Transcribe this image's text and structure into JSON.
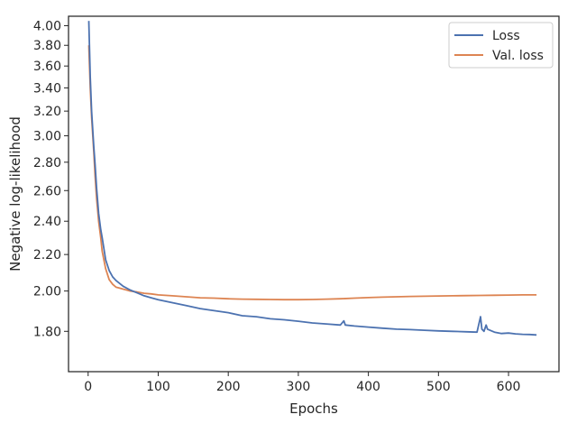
{
  "chart_data": {
    "type": "line",
    "title": "",
    "xlabel": "Epochs",
    "ylabel": "Negative log-likelihood",
    "xlim": [
      -28,
      672
    ],
    "ylim": [
      1.62,
      4.1
    ],
    "y_scale": "log",
    "grid": false,
    "legend_position": "top-right",
    "x_ticks": [
      0,
      100,
      200,
      300,
      400,
      500,
      600
    ],
    "x_tick_labels": [
      "0",
      "100",
      "200",
      "300",
      "400",
      "500",
      "600"
    ],
    "y_ticks": [
      1.8,
      2.0,
      2.2,
      2.4,
      2.6,
      2.8,
      3.0,
      3.2,
      3.4,
      3.6,
      3.8,
      4.0
    ],
    "y_tick_labels": [
      "1.80",
      "2.00",
      "2.20",
      "2.40",
      "2.60",
      "2.80",
      "3.00",
      "3.20",
      "3.40",
      "3.60",
      "3.80",
      "4.00"
    ],
    "series": [
      {
        "name": "Loss",
        "color": "#4c72b0",
        "x": [
          1,
          3,
          5,
          8,
          10,
          12,
          15,
          18,
          20,
          25,
          30,
          35,
          40,
          45,
          50,
          60,
          70,
          80,
          90,
          100,
          120,
          140,
          160,
          180,
          200,
          220,
          240,
          260,
          280,
          300,
          320,
          340,
          360,
          365,
          367,
          380,
          400,
          420,
          440,
          460,
          480,
          500,
          520,
          540,
          555,
          560,
          562,
          565,
          568,
          570,
          580,
          590,
          600,
          610,
          620,
          630,
          640
        ],
        "y": [
          4.05,
          3.5,
          3.2,
          2.92,
          2.78,
          2.62,
          2.45,
          2.35,
          2.3,
          2.17,
          2.11,
          2.075,
          2.055,
          2.04,
          2.025,
          2.005,
          1.99,
          1.975,
          1.965,
          1.955,
          1.94,
          1.925,
          1.91,
          1.9,
          1.89,
          1.875,
          1.87,
          1.86,
          1.855,
          1.848,
          1.84,
          1.835,
          1.83,
          1.85,
          1.83,
          1.825,
          1.82,
          1.815,
          1.81,
          1.808,
          1.805,
          1.802,
          1.8,
          1.798,
          1.796,
          1.87,
          1.81,
          1.8,
          1.83,
          1.81,
          1.796,
          1.79,
          1.792,
          1.788,
          1.786,
          1.785,
          1.783
        ]
      },
      {
        "name": "Val. loss",
        "color": "#dd8452",
        "x": [
          1,
          3,
          5,
          8,
          10,
          12,
          15,
          18,
          20,
          25,
          30,
          35,
          40,
          45,
          50,
          55,
          60,
          70,
          80,
          90,
          100,
          120,
          140,
          160,
          180,
          200,
          220,
          240,
          260,
          280,
          300,
          320,
          340,
          360,
          380,
          400,
          420,
          440,
          460,
          480,
          500,
          520,
          540,
          560,
          580,
          600,
          620,
          640
        ],
        "y": [
          3.8,
          3.4,
          3.15,
          2.88,
          2.7,
          2.55,
          2.4,
          2.3,
          2.22,
          2.12,
          2.06,
          2.035,
          2.02,
          2.015,
          2.01,
          2.005,
          2.0,
          1.995,
          1.988,
          1.985,
          1.98,
          1.975,
          1.97,
          1.965,
          1.963,
          1.96,
          1.958,
          1.957,
          1.956,
          1.955,
          1.955,
          1.956,
          1.958,
          1.96,
          1.963,
          1.966,
          1.968,
          1.97,
          1.972,
          1.973,
          1.974,
          1.975,
          1.976,
          1.977,
          1.978,
          1.979,
          1.98,
          1.98
        ]
      }
    ]
  }
}
